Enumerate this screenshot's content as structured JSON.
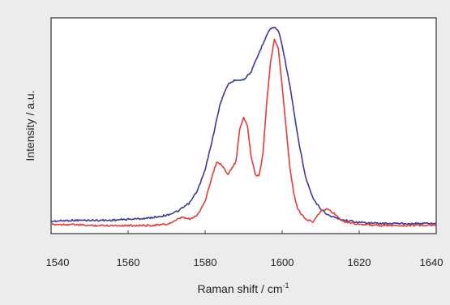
{
  "chart_data": {
    "type": "line",
    "xlabel": "Raman shift / cm",
    "xlabel_superscript": "-1",
    "ylabel": "Intensity / a.u.",
    "xlim": [
      1540,
      1640
    ],
    "ylim": [
      0,
      1
    ],
    "x_ticks": [
      1540,
      1560,
      1580,
      1600,
      1620,
      1640
    ],
    "x_tick_labels": [
      "1540",
      "1560",
      "1580",
      "1600",
      "1620",
      "1640"
    ],
    "y_ticks_shown": false,
    "grid": false,
    "legend": "none",
    "series": [
      {
        "color": "#3a3aa0",
        "x": [
          1540,
          1545,
          1550,
          1555,
          1560,
          1565,
          1570,
          1573,
          1576,
          1578,
          1580,
          1582,
          1584,
          1586,
          1588,
          1590,
          1592,
          1594,
          1596,
          1597,
          1598,
          1599,
          1600,
          1602,
          1604,
          1606,
          1608,
          1610,
          1612,
          1615,
          1620,
          1625,
          1630,
          1635,
          1640
        ],
        "y": [
          0.04,
          0.045,
          0.045,
          0.045,
          0.05,
          0.055,
          0.07,
          0.09,
          0.13,
          0.19,
          0.29,
          0.45,
          0.62,
          0.71,
          0.73,
          0.73,
          0.77,
          0.86,
          0.95,
          0.98,
          0.985,
          0.97,
          0.9,
          0.7,
          0.46,
          0.26,
          0.15,
          0.1,
          0.07,
          0.05,
          0.035,
          0.03,
          0.03,
          0.03,
          0.03
        ]
      },
      {
        "color": "#e83a3a",
        "x": [
          1540,
          1545,
          1550,
          1555,
          1560,
          1565,
          1570,
          1572,
          1574,
          1576,
          1578,
          1580,
          1582,
          1583,
          1584,
          1586,
          1588,
          1589,
          1590,
          1591,
          1592,
          1593,
          1594,
          1595,
          1596,
          1597,
          1598,
          1599,
          1600,
          1601,
          1602,
          1603,
          1604,
          1606,
          1608,
          1610,
          1612,
          1614,
          1616,
          1620,
          1625,
          1630,
          1635,
          1640
        ],
        "y": [
          0.025,
          0.025,
          0.02,
          0.02,
          0.02,
          0.02,
          0.025,
          0.04,
          0.06,
          0.05,
          0.07,
          0.14,
          0.27,
          0.33,
          0.32,
          0.27,
          0.33,
          0.49,
          0.55,
          0.5,
          0.35,
          0.27,
          0.26,
          0.37,
          0.62,
          0.82,
          0.93,
          0.88,
          0.7,
          0.5,
          0.3,
          0.18,
          0.1,
          0.05,
          0.04,
          0.09,
          0.1,
          0.07,
          0.04,
          0.025,
          0.02,
          0.02,
          0.02,
          0.02
        ]
      }
    ]
  }
}
